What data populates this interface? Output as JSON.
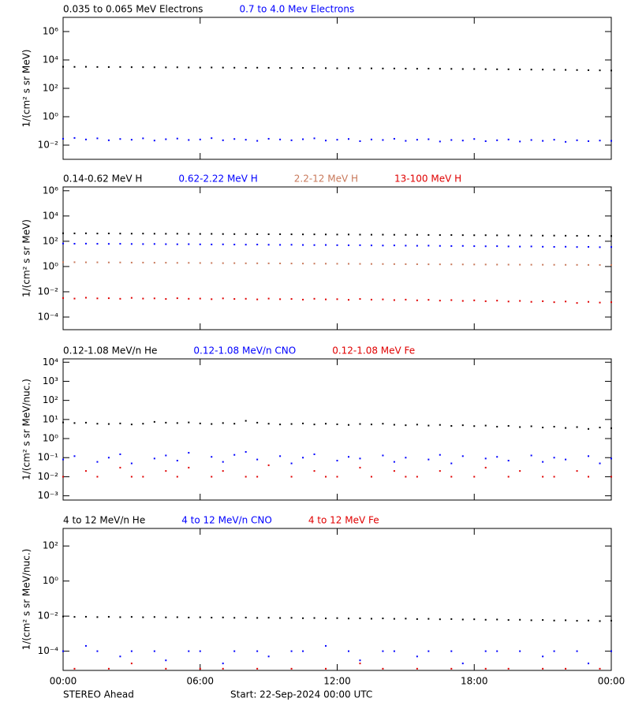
{
  "chart_data": [
    {
      "type": "scatter",
      "log_y": true,
      "y_label": "1/(cm² s sr MeV)",
      "xlim": [
        0,
        24
      ],
      "xticks": [
        0,
        6,
        12,
        18,
        24
      ],
      "ylim": [
        0.001,
        10000000
      ],
      "yticks": [
        {
          "value": 0.01,
          "label": "10⁻²"
        },
        {
          "value": 1,
          "label": "10⁰"
        },
        {
          "value": 100,
          "label": "10²"
        },
        {
          "value": 10000,
          "label": "10⁴"
        },
        {
          "value": 1000000,
          "label": "10⁶"
        }
      ],
      "x": [
        0,
        0.5,
        1,
        1.5,
        2,
        2.5,
        3,
        3.5,
        4,
        4.5,
        5,
        5.5,
        6,
        6.5,
        7,
        7.5,
        8,
        8.5,
        9,
        9.5,
        10,
        10.5,
        11,
        11.5,
        12,
        12.5,
        13,
        13.5,
        14,
        14.5,
        15,
        15.5,
        16,
        16.5,
        17,
        17.5,
        18,
        18.5,
        19,
        19.5,
        20,
        20.5,
        21,
        21.5,
        22,
        22.5,
        23,
        23.5,
        24
      ],
      "series": [
        {
          "name": "0.035 to 0.065 MeV Electrons",
          "color": "#000000",
          "values": [
            3300,
            3250,
            3300,
            3200,
            3150,
            3200,
            3100,
            3100,
            3050,
            3000,
            3050,
            2950,
            2900,
            2950,
            2900,
            2850,
            2800,
            2850,
            2800,
            2750,
            2700,
            2750,
            2700,
            2650,
            2600,
            2650,
            2600,
            2550,
            2500,
            2500,
            2450,
            2400,
            2450,
            2400,
            2350,
            2300,
            2300,
            2250,
            2200,
            2200,
            2150,
            2100,
            2100,
            2050,
            2000,
            1950,
            1900,
            1850,
            1800
          ]
        },
        {
          "name": "0.7 to 4.0 Mev Electrons",
          "color": "#0000ff",
          "values": [
            0.028,
            0.032,
            0.025,
            0.03,
            0.022,
            0.027,
            0.024,
            0.03,
            0.021,
            0.026,
            0.029,
            0.023,
            0.025,
            0.031,
            0.022,
            0.027,
            0.024,
            0.02,
            0.028,
            0.025,
            0.022,
            0.026,
            0.03,
            0.021,
            0.024,
            0.027,
            0.019,
            0.025,
            0.023,
            0.028,
            0.02,
            0.024,
            0.026,
            0.018,
            0.023,
            0.021,
            0.027,
            0.019,
            0.022,
            0.025,
            0.018,
            0.023,
            0.02,
            0.024,
            0.017,
            0.022,
            0.019,
            0.021,
            0.02
          ]
        }
      ]
    },
    {
      "type": "scatter",
      "log_y": true,
      "y_label": "1/(cm² s sr MeV)",
      "xlim": [
        0,
        24
      ],
      "xticks": [
        0,
        6,
        12,
        18,
        24
      ],
      "ylim": [
        1e-05,
        2000000
      ],
      "yticks": [
        {
          "value": 0.0001,
          "label": "10⁻⁴"
        },
        {
          "value": 0.01,
          "label": "10⁻²"
        },
        {
          "value": 1,
          "label": "10⁰"
        },
        {
          "value": 100,
          "label": "10²"
        },
        {
          "value": 10000,
          "label": "10⁴"
        },
        {
          "value": 1000000,
          "label": "10⁶"
        }
      ],
      "x": [
        0,
        0.5,
        1,
        1.5,
        2,
        2.5,
        3,
        3.5,
        4,
        4.5,
        5,
        5.5,
        6,
        6.5,
        7,
        7.5,
        8,
        8.5,
        9,
        9.5,
        10,
        10.5,
        11,
        11.5,
        12,
        12.5,
        13,
        13.5,
        14,
        14.5,
        15,
        15.5,
        16,
        16.5,
        17,
        17.5,
        18,
        18.5,
        19,
        19.5,
        20,
        20.5,
        21,
        21.5,
        22,
        22.5,
        23,
        23.5,
        24
      ],
      "series": [
        {
          "name": "0.14-0.62 MeV H",
          "color": "#000000",
          "values": [
            430,
            420,
            425,
            410,
            415,
            405,
            400,
            405,
            395,
            390,
            395,
            385,
            380,
            385,
            375,
            370,
            372,
            365,
            360,
            362,
            355,
            350,
            352,
            345,
            340,
            342,
            335,
            330,
            332,
            325,
            320,
            322,
            315,
            310,
            312,
            305,
            300,
            302,
            295,
            290,
            292,
            285,
            280,
            282,
            275,
            270,
            272,
            265,
            260
          ]
        },
        {
          "name": "0.62-2.22 MeV H",
          "color": "#0000ff",
          "values": [
            66,
            64,
            65,
            63,
            62,
            63,
            61,
            60,
            61,
            59,
            58,
            59,
            57,
            56,
            57,
            55,
            54,
            55,
            53,
            52,
            53,
            51,
            50,
            51,
            49,
            48,
            49,
            47,
            46,
            47,
            45,
            44,
            45,
            43,
            42,
            43,
            41,
            40,
            41,
            39,
            38,
            39,
            37,
            36,
            37,
            35,
            36,
            34,
            35
          ]
        },
        {
          "name": "2.2-12 MeV H",
          "color": "#c8785a",
          "values": [
            2.2,
            2.2,
            2.15,
            2.15,
            2.1,
            2.1,
            2.05,
            2.05,
            2.0,
            2.0,
            1.95,
            1.95,
            1.9,
            1.9,
            1.85,
            1.85,
            1.8,
            1.8,
            1.78,
            1.76,
            1.74,
            1.72,
            1.7,
            1.68,
            1.66,
            1.64,
            1.62,
            1.6,
            1.58,
            1.56,
            1.54,
            1.52,
            1.5,
            1.49,
            1.48,
            1.46,
            1.45,
            1.44,
            1.42,
            1.41,
            1.4,
            1.39,
            1.38,
            1.37,
            1.36,
            1.35,
            1.34,
            1.33,
            1.32
          ]
        },
        {
          "name": "13-100 MeV H",
          "color": "#e00000",
          "values": [
            0.0032,
            0.0029,
            0.0034,
            0.003,
            0.0031,
            0.0028,
            0.0033,
            0.0029,
            0.003,
            0.0027,
            0.0031,
            0.0028,
            0.0029,
            0.0026,
            0.003,
            0.0027,
            0.0028,
            0.0025,
            0.0029,
            0.0026,
            0.0027,
            0.0024,
            0.0028,
            0.0025,
            0.0026,
            0.0023,
            0.0027,
            0.0024,
            0.0025,
            0.0022,
            0.0024,
            0.0021,
            0.0023,
            0.002,
            0.0022,
            0.0019,
            0.0021,
            0.0018,
            0.002,
            0.0017,
            0.0019,
            0.0016,
            0.0018,
            0.0015,
            0.0017,
            0.0013,
            0.0016,
            0.0014,
            0.0015
          ]
        }
      ]
    },
    {
      "type": "scatter",
      "log_y": true,
      "y_label": "1/(cm² s sr MeV/nuc.)",
      "xlim": [
        0,
        24
      ],
      "xticks": [
        0,
        6,
        12,
        18,
        24
      ],
      "ylim": [
        0.0006,
        15000
      ],
      "yticks": [
        {
          "value": 0.001,
          "label": "10⁻³"
        },
        {
          "value": 0.01,
          "label": "10⁻²"
        },
        {
          "value": 0.1,
          "label": "10⁻¹"
        },
        {
          "value": 1,
          "label": "10⁰"
        },
        {
          "value": 10,
          "label": "10¹"
        },
        {
          "value": 100,
          "label": "10²"
        },
        {
          "value": 1000,
          "label": "10³"
        },
        {
          "value": 10000,
          "label": "10⁴"
        }
      ],
      "x": [
        0,
        0.5,
        1,
        1.5,
        2,
        2.5,
        3,
        3.5,
        4,
        4.5,
        5,
        5.5,
        6,
        6.5,
        7,
        7.5,
        8,
        8.5,
        9,
        9.5,
        10,
        10.5,
        11,
        11.5,
        12,
        12.5,
        13,
        13.5,
        14,
        14.5,
        15,
        15.5,
        16,
        16.5,
        17,
        17.5,
        18,
        18.5,
        19,
        19.5,
        20,
        20.5,
        21,
        21.5,
        22,
        22.5,
        23,
        23.5,
        24
      ],
      "series": [
        {
          "name": "0.12-1.08 MeV/n He",
          "color": "#000000",
          "values": [
            7,
            6.5,
            6.8,
            6,
            5.8,
            6.2,
            5.5,
            6,
            7.5,
            6.8,
            6.5,
            7,
            6.2,
            5.8,
            6.5,
            6,
            8.5,
            6.8,
            6,
            5.5,
            5.8,
            6.2,
            5.5,
            6,
            5.6,
            5.2,
            5.8,
            5.5,
            6,
            5.3,
            5,
            5.4,
            4.8,
            5.2,
            4.6,
            5,
            4.5,
            4.8,
            4.2,
            4.6,
            4,
            4.4,
            3.8,
            4.2,
            3.6,
            4,
            3.2,
            3.8,
            3.5
          ]
        },
        {
          "name": "0.12-1.08 MeV/n CNO",
          "color": "#0000ff",
          "values": [
            0.08,
            0.12,
            null,
            0.06,
            0.1,
            0.15,
            0.05,
            null,
            0.09,
            0.13,
            0.07,
            0.18,
            null,
            0.11,
            0.06,
            0.14,
            0.2,
            0.08,
            null,
            0.12,
            0.05,
            0.1,
            0.15,
            null,
            0.07,
            0.11,
            0.09,
            null,
            0.13,
            0.06,
            0.1,
            null,
            0.08,
            0.14,
            0.05,
            0.12,
            null,
            0.09,
            0.11,
            0.07,
            null,
            0.13,
            0.06,
            0.1,
            0.08,
            null,
            0.12,
            0.05,
            0.09
          ]
        },
        {
          "name": "0.12-1.08 MeV Fe",
          "color": "#e00000",
          "values": [
            0.01,
            null,
            0.02,
            0.01,
            null,
            0.03,
            0.01,
            0.01,
            null,
            0.02,
            0.01,
            0.03,
            null,
            0.01,
            0.02,
            null,
            0.01,
            0.01,
            0.04,
            null,
            0.01,
            null,
            0.02,
            0.01,
            0.01,
            null,
            0.03,
            0.01,
            null,
            0.02,
            0.01,
            0.01,
            null,
            0.02,
            0.01,
            null,
            0.01,
            0.03,
            null,
            0.01,
            0.02,
            null,
            0.01,
            0.01,
            null,
            0.02,
            0.01,
            null,
            0.01
          ]
        }
      ]
    },
    {
      "type": "scatter",
      "log_y": true,
      "y_label": "1/(cm² s sr MeV/nuc.)",
      "xlim": [
        0,
        24
      ],
      "xticks": [
        {
          "value": 0,
          "label": "00:00"
        },
        {
          "value": 6,
          "label": "06:00"
        },
        {
          "value": 12,
          "label": "12:00"
        },
        {
          "value": 18,
          "label": "18:00"
        },
        {
          "value": 24,
          "label": "00:00"
        }
      ],
      "ylim": [
        8e-06,
        1000
      ],
      "yticks": [
        {
          "value": 0.0001,
          "label": "10⁻⁴"
        },
        {
          "value": 0.01,
          "label": "10⁻²"
        },
        {
          "value": 1,
          "label": "10⁰"
        },
        {
          "value": 100,
          "label": "10²"
        }
      ],
      "x": [
        0,
        0.5,
        1,
        1.5,
        2,
        2.5,
        3,
        3.5,
        4,
        4.5,
        5,
        5.5,
        6,
        6.5,
        7,
        7.5,
        8,
        8.5,
        9,
        9.5,
        10,
        10.5,
        11,
        11.5,
        12,
        12.5,
        13,
        13.5,
        14,
        14.5,
        15,
        15.5,
        16,
        16.5,
        17,
        17.5,
        18,
        18.5,
        19,
        19.5,
        20,
        20.5,
        21,
        21.5,
        22,
        22.5,
        23,
        23.5,
        24
      ],
      "series": [
        {
          "name": "4 to 12 MeV/n He",
          "color": "#000000",
          "values": [
            0.0095,
            0.009,
            0.0092,
            0.0088,
            0.0091,
            0.0087,
            0.009,
            0.0086,
            0.0089,
            0.0085,
            0.0087,
            0.0083,
            0.0086,
            0.0082,
            0.0084,
            0.008,
            0.0083,
            0.0079,
            0.0081,
            0.0078,
            0.008,
            0.0076,
            0.0078,
            0.0074,
            0.0077,
            0.0073,
            0.0075,
            0.0071,
            0.0074,
            0.007,
            0.0072,
            0.0068,
            0.007,
            0.0066,
            0.0068,
            0.0064,
            0.0066,
            0.0062,
            0.0064,
            0.006,
            0.0062,
            0.0058,
            0.006,
            0.0056,
            0.0058,
            0.0054,
            0.0056,
            0.0052,
            0.0055
          ]
        },
        {
          "name": "4 to 12 MeV/n CNO",
          "color": "#0000ff",
          "values": [
            0.0001,
            null,
            0.0002,
            0.0001,
            null,
            5e-05,
            0.0001,
            null,
            0.0001,
            3e-05,
            null,
            0.0001,
            0.0001,
            null,
            2e-05,
            0.0001,
            null,
            0.0001,
            5e-05,
            null,
            0.0001,
            0.0001,
            null,
            0.0002,
            null,
            0.0001,
            3e-05,
            null,
            0.0001,
            0.0001,
            null,
            5e-05,
            0.0001,
            null,
            0.0001,
            2e-05,
            null,
            0.0001,
            0.0001,
            null,
            0.0001,
            null,
            5e-05,
            0.0001,
            null,
            0.0001,
            2e-05,
            null,
            0.0001
          ]
        },
        {
          "name": "4 to 12 MeV Fe",
          "color": "#e00000",
          "values": [
            null,
            1e-05,
            null,
            null,
            1e-05,
            null,
            2e-05,
            null,
            null,
            1e-05,
            null,
            null,
            1e-05,
            null,
            1e-05,
            null,
            null,
            1e-05,
            null,
            null,
            1e-05,
            null,
            null,
            1e-05,
            null,
            null,
            2e-05,
            null,
            1e-05,
            null,
            null,
            1e-05,
            null,
            null,
            1e-05,
            null,
            null,
            1e-05,
            null,
            1e-05,
            null,
            null,
            1e-05,
            null,
            1e-05,
            null,
            null,
            1e-05,
            null
          ]
        }
      ]
    }
  ],
  "footer": {
    "left": "STEREO Ahead",
    "center": "Start: 22-Sep-2024 00:00 UTC"
  }
}
